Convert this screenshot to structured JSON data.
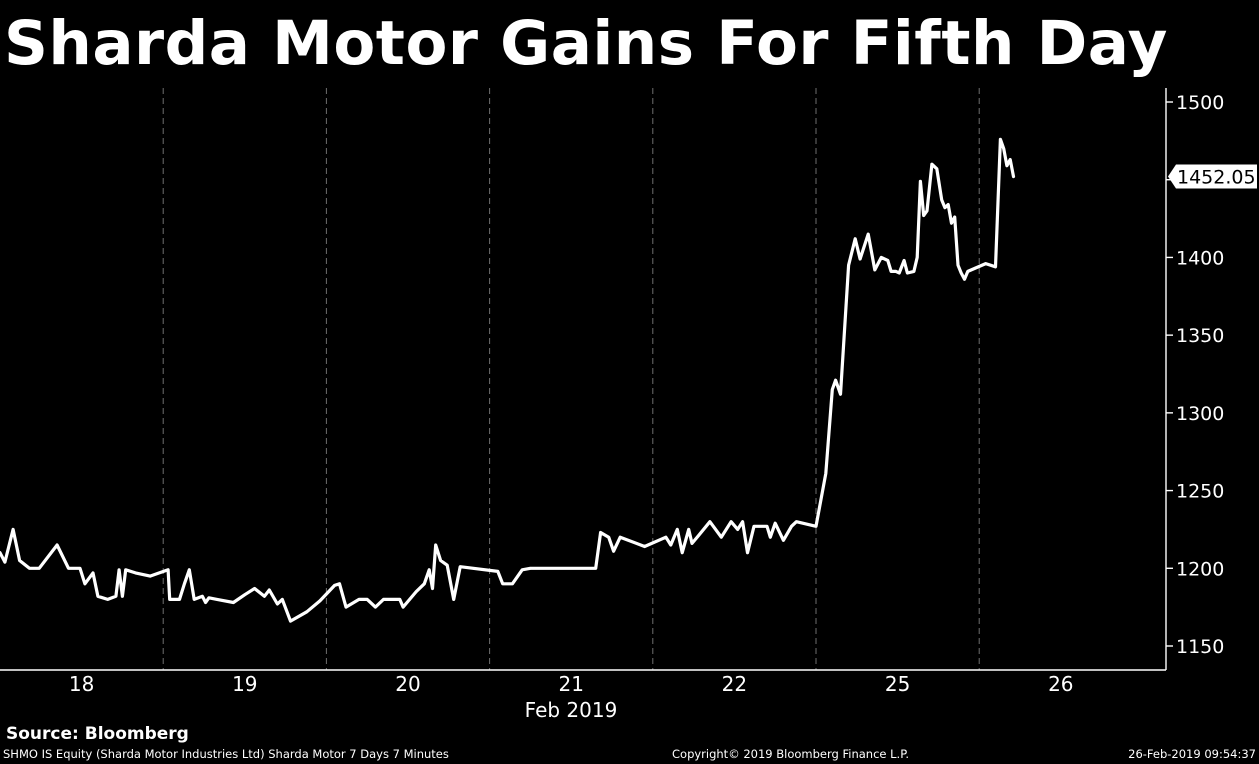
{
  "header": {
    "title": "Sharda Motor Gains For Fifth Day"
  },
  "footer": {
    "source": "Source: Bloomberg",
    "ticker_info": "SHMO IS Equity (Sharda Motor Industries Ltd) Sharda Motor 7 Days 7 Minutes",
    "copyright": "Copyright© 2019 Bloomberg Finance L.P.",
    "timestamp": "26-Feb-2019 09:54:37"
  },
  "colors": {
    "background": "#000000",
    "line": "#ffffff",
    "grid": "#6e6e6e"
  },
  "chart_data": {
    "type": "line",
    "title": "Sharda Motor Gains For Fifth Day",
    "xlabel": "Feb 2019",
    "ylabel": "",
    "ylim": [
      1135,
      1510
    ],
    "xlim": [
      0,
      7
    ],
    "x_ticks": [
      {
        "pos": 0.5,
        "label": "18"
      },
      {
        "pos": 1.5,
        "label": "19"
      },
      {
        "pos": 2.5,
        "label": "20"
      },
      {
        "pos": 3.5,
        "label": "21"
      },
      {
        "pos": 4.5,
        "label": "22"
      },
      {
        "pos": 5.5,
        "label": "25"
      },
      {
        "pos": 6.5,
        "label": "26"
      }
    ],
    "day_separators": [
      1,
      2,
      3,
      4,
      5,
      6
    ],
    "y_ticks": [
      1150,
      1200,
      1250,
      1300,
      1350,
      1400,
      1450,
      1500
    ],
    "last_value": 1452.05,
    "last_value_label": "1452.05",
    "grid": true,
    "series": [
      {
        "points": [
          [
            0.0,
            1210
          ],
          [
            0.03,
            1204
          ],
          [
            0.08,
            1225
          ],
          [
            0.12,
            1205
          ],
          [
            0.18,
            1200
          ],
          [
            0.24,
            1200
          ],
          [
            0.35,
            1215
          ],
          [
            0.42,
            1200
          ],
          [
            0.49,
            1200
          ],
          [
            0.52,
            1190
          ],
          [
            0.57,
            1197
          ],
          [
            0.6,
            1182
          ],
          [
            0.66,
            1180
          ],
          [
            0.71,
            1182
          ],
          [
            0.73,
            1199
          ],
          [
            0.75,
            1182
          ],
          [
            0.77,
            1199
          ],
          [
            0.83,
            1197
          ],
          [
            0.92,
            1195
          ],
          [
            1.03,
            1199
          ],
          [
            1.04,
            1180
          ],
          [
            1.1,
            1180
          ],
          [
            1.13,
            1190
          ],
          [
            1.16,
            1199
          ],
          [
            1.19,
            1180
          ],
          [
            1.24,
            1182
          ],
          [
            1.26,
            1178
          ],
          [
            1.28,
            1181
          ],
          [
            1.33,
            1180
          ],
          [
            1.43,
            1178
          ],
          [
            1.5,
            1183
          ],
          [
            1.56,
            1187
          ],
          [
            1.62,
            1182
          ],
          [
            1.65,
            1186
          ],
          [
            1.7,
            1177
          ],
          [
            1.73,
            1180
          ],
          [
            1.78,
            1166
          ],
          [
            1.88,
            1172
          ],
          [
            1.96,
            1179
          ],
          [
            2.05,
            1189
          ],
          [
            2.08,
            1190
          ],
          [
            2.12,
            1175
          ],
          [
            2.2,
            1180
          ],
          [
            2.25,
            1180
          ],
          [
            2.3,
            1175
          ],
          [
            2.35,
            1180
          ],
          [
            2.45,
            1180
          ],
          [
            2.47,
            1175
          ],
          [
            2.55,
            1185
          ],
          [
            2.6,
            1190
          ],
          [
            2.63,
            1199
          ],
          [
            2.65,
            1187
          ],
          [
            2.67,
            1215
          ],
          [
            2.7,
            1205
          ],
          [
            2.74,
            1202
          ],
          [
            2.78,
            1180
          ],
          [
            2.82,
            1201
          ],
          [
            3.05,
            1198
          ],
          [
            3.08,
            1190
          ],
          [
            3.14,
            1190
          ],
          [
            3.2,
            1199
          ],
          [
            3.25,
            1200
          ],
          [
            3.65,
            1200
          ],
          [
            3.68,
            1223
          ],
          [
            3.73,
            1220
          ],
          [
            3.76,
            1211
          ],
          [
            3.8,
            1220
          ],
          [
            3.95,
            1214
          ],
          [
            4.08,
            1220
          ],
          [
            4.11,
            1215
          ],
          [
            4.15,
            1225
          ],
          [
            4.18,
            1210
          ],
          [
            4.22,
            1225
          ],
          [
            4.24,
            1216
          ],
          [
            4.28,
            1221
          ],
          [
            4.35,
            1230
          ],
          [
            4.42,
            1220
          ],
          [
            4.48,
            1230
          ],
          [
            4.52,
            1225
          ],
          [
            4.55,
            1230
          ],
          [
            4.58,
            1210
          ],
          [
            4.62,
            1227
          ],
          [
            4.7,
            1227
          ],
          [
            4.72,
            1220
          ],
          [
            4.75,
            1229
          ],
          [
            4.8,
            1218
          ],
          [
            4.85,
            1227
          ],
          [
            4.88,
            1230
          ],
          [
            5.0,
            1227
          ],
          [
            5.06,
            1261
          ],
          [
            5.1,
            1315
          ],
          [
            5.12,
            1321
          ],
          [
            5.15,
            1312
          ],
          [
            5.2,
            1395
          ],
          [
            5.24,
            1412
          ],
          [
            5.27,
            1399
          ],
          [
            5.32,
            1415
          ],
          [
            5.36,
            1392
          ],
          [
            5.4,
            1400
          ],
          [
            5.44,
            1398
          ],
          [
            5.46,
            1391
          ],
          [
            5.49,
            1391
          ],
          [
            5.51,
            1390
          ],
          [
            5.54,
            1398
          ],
          [
            5.56,
            1390
          ],
          [
            5.6,
            1391
          ],
          [
            5.62,
            1400
          ],
          [
            5.64,
            1449
          ],
          [
            5.66,
            1427
          ],
          [
            5.68,
            1430
          ],
          [
            5.71,
            1460
          ],
          [
            5.74,
            1457
          ],
          [
            5.77,
            1437
          ],
          [
            5.79,
            1432
          ],
          [
            5.81,
            1434
          ],
          [
            5.83,
            1422
          ],
          [
            5.85,
            1426
          ],
          [
            5.87,
            1395
          ],
          [
            5.89,
            1390
          ],
          [
            5.91,
            1386
          ],
          [
            5.93,
            1391
          ],
          [
            6.04,
            1396
          ],
          [
            6.1,
            1394
          ],
          [
            6.13,
            1476
          ],
          [
            6.15,
            1470
          ],
          [
            6.17,
            1459
          ],
          [
            6.19,
            1463
          ],
          [
            6.21,
            1452
          ]
        ]
      }
    ]
  }
}
